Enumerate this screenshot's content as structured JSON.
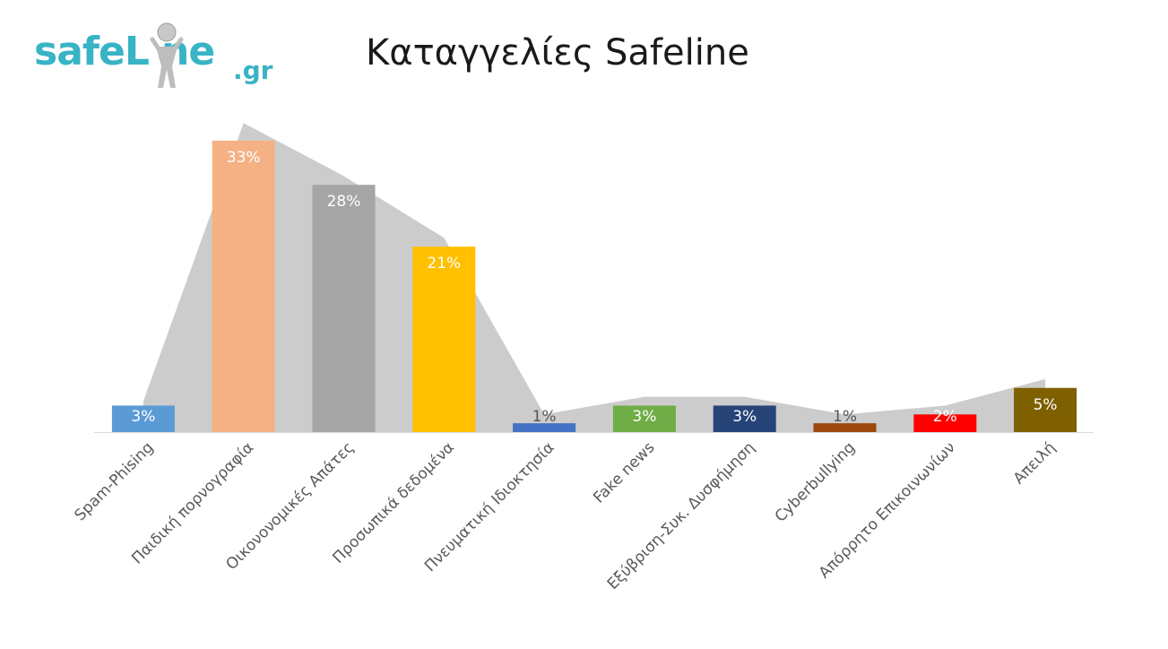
{
  "logo": {
    "text": "safeLine",
    "suffix": ".gr"
  },
  "title": "Καταγγελίες Safeline",
  "chart_data": {
    "type": "bar",
    "title": "Καταγγελίες Safeline",
    "categories": [
      "Spam-Phising",
      "Παιδική πορνογραφία",
      "Οικονονομικές Απάτες",
      "Προσωπικά δεδομένα",
      "Πνευματική Ιδιοκτησία",
      "Fake news",
      "Εξύβριση-Συκ. Δυσφήμηση",
      "Cyberbullying",
      "Απόρρητο Επικοινωνίων",
      "Απειλή"
    ],
    "values": [
      3,
      33,
      28,
      21,
      1,
      3,
      3,
      1,
      2,
      5
    ],
    "data_labels": [
      "3%",
      "33%",
      "28%",
      "21%",
      "1%",
      "3%",
      "3%",
      "1%",
      "2%",
      "5%"
    ],
    "colors": [
      "#5b9bd5",
      "#f4b183",
      "#a5a5a5",
      "#ffc000",
      "#4472c4",
      "#70ad47",
      "#264478",
      "#9e480e",
      "#ff0000",
      "#7f6000"
    ],
    "background_area": {
      "values": [
        3.5,
        35,
        29,
        22,
        2,
        4,
        4,
        2,
        3,
        6
      ],
      "color": "#cccccc"
    },
    "ylim": [
      0,
      35
    ],
    "xlabel": "",
    "ylabel": "",
    "grid": false,
    "legend": "none"
  }
}
